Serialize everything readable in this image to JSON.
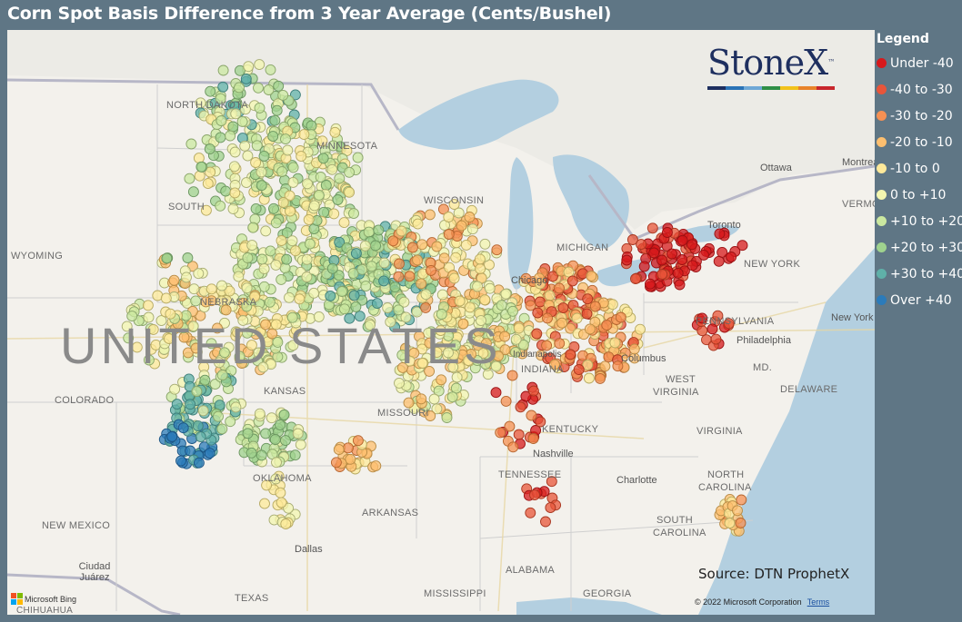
{
  "title": "Corn Spot Basis Difference from 3 Year Average (Cents/Bushel)",
  "legend": {
    "title": "Legend",
    "items": [
      {
        "label": "Under -40",
        "color": "#d7191c"
      },
      {
        "label": "-40 to -30",
        "color": "#e8553a"
      },
      {
        "label": "-30 to -20",
        "color": "#f59053"
      },
      {
        "label": "-20 to -10",
        "color": "#fdbf6f"
      },
      {
        "label": "-10 to 0",
        "color": "#fee99a"
      },
      {
        "label": "0 to +10",
        "color": "#f3f6b0"
      },
      {
        "label": "+10 to +20",
        "color": "#cbe8a0"
      },
      {
        "label": "+20 to +30",
        "color": "#9fd28e"
      },
      {
        "label": "+30 to +40",
        "color": "#5fb0a8"
      },
      {
        "label": "Over +40",
        "color": "#2b7bba"
      }
    ]
  },
  "logo": {
    "text": "StoneX",
    "tm": "™",
    "bar_colors": [
      "#1e2f5f",
      "#2b73b6",
      "#6fa8d6",
      "#2f8f46",
      "#f2c21b",
      "#e8832a",
      "#c8262c"
    ]
  },
  "source": "Source: DTN ProphetX",
  "copyright": "© 2022 Microsoft Corporation",
  "terms": "Terms",
  "bing": "Microsoft Bing",
  "map_labels": {
    "country": "UNITED STATES",
    "states": [
      "NORTH DAKOTA",
      "SOUTH",
      "MINNESOTA",
      "WISCONSIN",
      "WYOMING",
      "NEBRASKA",
      "COLORADO",
      "KANSAS",
      "MISSOURI",
      "OKLAHOMA",
      "NEW MEXICO",
      "TEXAS",
      "ARKANSAS",
      "MISSISSIPPI",
      "ALABAMA",
      "GEORGIA",
      "TENNESSEE",
      "KENTUCKY",
      "WEST",
      "VIRGINIA",
      "VIRGINIA",
      "NORTH",
      "CAROLINA",
      "SOUTH",
      "CAROLINA",
      "PENNSYLVANIA",
      "NEW YORK",
      "MD.",
      "DELAWARE",
      "VERMONT",
      "INDIANA",
      "MICHIGAN"
    ],
    "cities": [
      "Ottawa",
      "Montreal",
      "Toronto",
      "Chicago",
      "Columbus",
      "Philadelphia",
      "New York",
      "Nashville",
      "Charlotte",
      "Dallas",
      "Ciudad Juárez",
      "CHIHUAHUA",
      "Indianapolis"
    ]
  }
}
